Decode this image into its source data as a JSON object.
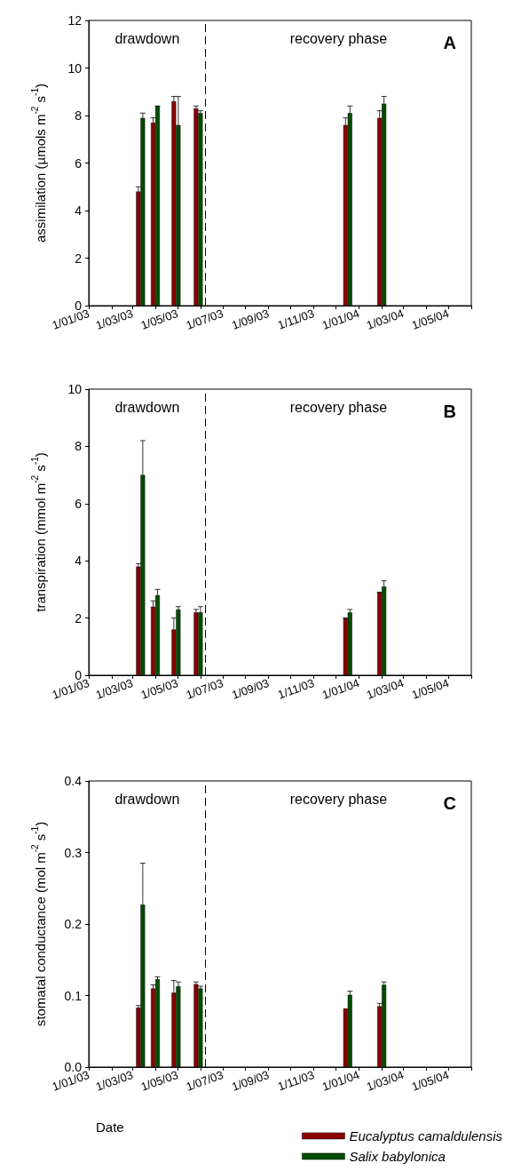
{
  "chart_data": [
    {
      "type": "bar",
      "title": "A",
      "ylabel": "assimilation (µmols m$^{-2}$ s$^{-1}$)",
      "x": [
        "2003-03-12",
        "2003-04-01",
        "2003-04-29",
        "2003-05-29",
        "2003-12-17",
        "2004-02-01"
      ],
      "series": [
        {
          "color": "#8b0000",
          "values": [
            4.8,
            7.7,
            8.6,
            8.3,
            7.6,
            7.9
          ],
          "errors": [
            [
              4.8,
              5.0
            ],
            [
              7.7,
              7.9
            ],
            [
              8.6,
              8.8
            ],
            [
              8.3,
              8.4
            ],
            [
              7.6,
              7.9
            ],
            [
              7.9,
              8.2
            ]
          ]
        },
        {
          "color": "#004d00",
          "values": [
            7.9,
            8.4,
            7.6,
            8.1,
            8.1,
            8.5
          ],
          "errors": [
            [
              7.9,
              8.1
            ],
            [
              8.4,
              8.4
            ],
            [
              7.6,
              8.8
            ],
            [
              8.1,
              8.2
            ],
            [
              8.1,
              8.4
            ],
            [
              8.5,
              8.8
            ]
          ]
        }
      ],
      "xlim": [
        "2003-01-01",
        "2004-06-01"
      ],
      "xticks": [
        {
          "value": "2003-01-01",
          "label": "1/01/03"
        },
        {
          "value": "2003-02-01",
          "label": null
        },
        {
          "value": "2003-03-01",
          "label": "1/03/03"
        },
        {
          "value": "2003-04-01",
          "label": null
        },
        {
          "value": "2003-05-01",
          "label": "1/05/03"
        },
        {
          "value": "2003-06-01",
          "label": null
        },
        {
          "value": "2003-07-01",
          "label": "1/07/03"
        },
        {
          "value": "2003-08-01",
          "label": null
        },
        {
          "value": "2003-09-01",
          "label": "1/09/03"
        },
        {
          "value": "2003-10-01",
          "label": null
        },
        {
          "value": "2003-11-01",
          "label": "1/11/03"
        },
        {
          "value": "2003-12-01",
          "label": null
        },
        {
          "value": "2004-01-01",
          "label": "1/01/04"
        },
        {
          "value": "2004-02-01",
          "label": null
        },
        {
          "value": "2004-03-01",
          "label": "1/03/04"
        },
        {
          "value": "2004-04-01",
          "label": null
        },
        {
          "value": "2004-05-01",
          "label": "1/05/04"
        },
        {
          "value": "2004-06-01",
          "label": null
        }
      ],
      "ylim": [
        0,
        12
      ],
      "yticks": [
        0,
        2,
        4,
        6,
        8,
        10,
        12
      ],
      "ref_lines": [
        {
          "axis": "x",
          "value": "2003-06-08",
          "line_style": "dashed"
        }
      ],
      "annotations": [
        "drawdown",
        "recovery phase"
      ],
      "grid": false,
      "legend": false
    },
    {
      "type": "bar",
      "title": "B",
      "ylabel": "transpiration (mmol m$^{-2}$ s$^{-1}$)",
      "x": [
        "2003-03-12",
        "2003-04-01",
        "2003-04-29",
        "2003-05-29",
        "2003-12-17",
        "2004-02-01"
      ],
      "series": [
        {
          "color": "#8b0000",
          "values": [
            3.8,
            2.4,
            1.6,
            2.2,
            2.0,
            2.9
          ],
          "errors": [
            [
              3.8,
              3.9
            ],
            [
              2.4,
              2.6
            ],
            [
              1.6,
              2.0
            ],
            [
              2.2,
              2.3
            ],
            [
              2.0,
              2.0
            ],
            [
              2.9,
              2.9
            ]
          ]
        },
        {
          "color": "#004d00",
          "values": [
            7.0,
            2.8,
            2.3,
            2.2,
            2.2,
            3.1
          ],
          "errors": [
            [
              7.0,
              8.2
            ],
            [
              2.8,
              3.0
            ],
            [
              2.3,
              2.4
            ],
            [
              2.2,
              2.4
            ],
            [
              2.2,
              2.3
            ],
            [
              3.1,
              3.3
            ]
          ]
        }
      ],
      "xlim": [
        "2003-01-01",
        "2004-06-01"
      ],
      "xticks": [
        {
          "value": "2003-01-01",
          "label": "1/01/03"
        },
        {
          "value": "2003-02-01",
          "label": null
        },
        {
          "value": "2003-03-01",
          "label": "1/03/03"
        },
        {
          "value": "2003-04-01",
          "label": null
        },
        {
          "value": "2003-05-01",
          "label": "1/05/03"
        },
        {
          "value": "2003-06-01",
          "label": null
        },
        {
          "value": "2003-07-01",
          "label": "1/07/03"
        },
        {
          "value": "2003-08-01",
          "label": null
        },
        {
          "value": "2003-09-01",
          "label": "1/09/03"
        },
        {
          "value": "2003-10-01",
          "label": null
        },
        {
          "value": "2003-11-01",
          "label": "1/11/03"
        },
        {
          "value": "2003-12-01",
          "label": null
        },
        {
          "value": "2004-01-01",
          "label": "1/01/04"
        },
        {
          "value": "2004-02-01",
          "label": null
        },
        {
          "value": "2004-03-01",
          "label": "1/03/04"
        },
        {
          "value": "2004-04-01",
          "label": null
        },
        {
          "value": "2004-05-01",
          "label": "1/05/04"
        },
        {
          "value": "2004-06-01",
          "label": null
        }
      ],
      "ylim": [
        0,
        10
      ],
      "yticks": [
        0,
        2,
        4,
        6,
        8,
        10
      ],
      "ref_lines": [
        {
          "axis": "x",
          "value": "2003-06-08",
          "line_style": "dashed"
        }
      ],
      "annotations": [
        "drawdown",
        "recovery phase"
      ],
      "grid": false,
      "legend": false
    },
    {
      "type": "bar",
      "title": "C",
      "xlabel": "Date",
      "ylabel": "stomatal conductance (mol m$^{-2}$ s$^{-1}$)",
      "x": [
        "2003-03-12",
        "2003-04-01",
        "2003-04-29",
        "2003-05-29",
        "2003-12-17",
        "2004-02-01"
      ],
      "series": [
        {
          "name": "Eucalyptus camaldulensis",
          "color": "#8b0000",
          "values": [
            0.083,
            0.11,
            0.104,
            0.116,
            0.082,
            0.085
          ],
          "errors": [
            [
              0.083,
              0.086
            ],
            [
              0.11,
              0.115
            ],
            [
              0.104,
              0.121
            ],
            [
              0.116,
              0.119
            ],
            null,
            [
              0.085,
              0.089
            ]
          ]
        },
        {
          "name": "Salix babylonica",
          "color": "#004d00",
          "values": [
            0.227,
            0.123,
            0.113,
            0.11,
            0.101,
            0.115
          ],
          "errors": [
            [
              0.227,
              0.285
            ],
            [
              0.123,
              0.126
            ],
            [
              0.113,
              0.119
            ],
            [
              0.11,
              0.113
            ],
            [
              0.101,
              0.106
            ],
            [
              0.115,
              0.119
            ]
          ]
        }
      ],
      "xlim": [
        "2003-01-01",
        "2004-06-01"
      ],
      "xticks": [
        {
          "value": "2003-01-01",
          "label": "1/01/03"
        },
        {
          "value": "2003-02-01",
          "label": null
        },
        {
          "value": "2003-03-01",
          "label": "1/03/03"
        },
        {
          "value": "2003-04-01",
          "label": null
        },
        {
          "value": "2003-05-01",
          "label": "1/05/03"
        },
        {
          "value": "2003-06-01",
          "label": null
        },
        {
          "value": "2003-07-01",
          "label": "1/07/03"
        },
        {
          "value": "2003-08-01",
          "label": null
        },
        {
          "value": "2003-09-01",
          "label": "1/09/03"
        },
        {
          "value": "2003-10-01",
          "label": null
        },
        {
          "value": "2003-11-01",
          "label": "1/11/03"
        },
        {
          "value": "2003-12-01",
          "label": null
        },
        {
          "value": "2004-01-01",
          "label": "1/01/04"
        },
        {
          "value": "2004-02-01",
          "label": null
        },
        {
          "value": "2004-03-01",
          "label": "1/03/04"
        },
        {
          "value": "2004-04-01",
          "label": null
        },
        {
          "value": "2004-05-01",
          "label": "1/05/04"
        },
        {
          "value": "2004-06-01",
          "label": null
        }
      ],
      "ylim": [
        0,
        0.4
      ],
      "yticks": [
        {
          "value": 0,
          "label": "0.0"
        },
        0.1,
        0.2,
        0.3,
        0.4
      ],
      "ref_lines": [
        {
          "axis": "x",
          "value": "2003-06-08",
          "line_style": "dashed"
        }
      ],
      "annotations": [
        "drawdown",
        "recovery phase"
      ],
      "grid": false,
      "legend": "bottom"
    }
  ]
}
